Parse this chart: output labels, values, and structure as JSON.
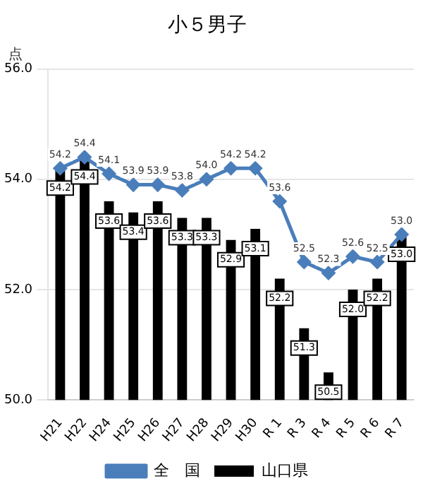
{
  "chart_data": {
    "type": "bar",
    "title": "小５男子",
    "ylabel": "点",
    "categories": [
      "H21",
      "H22",
      "H24",
      "H25",
      "H26",
      "H27",
      "H28",
      "H29",
      "H30",
      "R 1",
      "R 3",
      "R 4",
      "R 5",
      "R 6",
      "R 7"
    ],
    "series": [
      {
        "name": "山口県",
        "color": "#000000",
        "values": [
          54.2,
          54.4,
          53.6,
          53.4,
          53.6,
          53.3,
          53.3,
          52.9,
          53.1,
          52.2,
          51.3,
          50.5,
          52.0,
          52.2,
          53.0
        ],
        "value_labels": [
          "54.2",
          "54.4",
          "53.6",
          "53.4",
          "53.6",
          "53.3",
          "53.3",
          "52.9",
          "53.1",
          "52.2",
          "51.3",
          "50.5",
          "52.0",
          "52.2",
          "53.0"
        ]
      },
      {
        "name": "全　国",
        "type": "line",
        "color": "#4a7ebb",
        "values": [
          54.2,
          54.4,
          54.1,
          53.9,
          53.9,
          53.8,
          54.0,
          54.2,
          54.2,
          53.6,
          52.5,
          52.3,
          52.6,
          52.5,
          53.0
        ],
        "value_labels": [
          "54.2",
          "54.4",
          "54.1",
          "53.9",
          "53.9",
          "53.8",
          "54.0",
          "54.2",
          "54.2",
          "53.6",
          "52.5",
          "52.3",
          "52.6",
          "52.5",
          "53.0"
        ]
      }
    ],
    "ylim": [
      50,
      56
    ],
    "yticks": [
      {
        "value": 50,
        "label": "50.0"
      },
      {
        "value": 52,
        "label": "52.0"
      },
      {
        "value": 54,
        "label": "54.0"
      },
      {
        "value": 56,
        "label": "56.0"
      }
    ],
    "grid": "y",
    "legend": "bottom",
    "marker": "diamond"
  }
}
